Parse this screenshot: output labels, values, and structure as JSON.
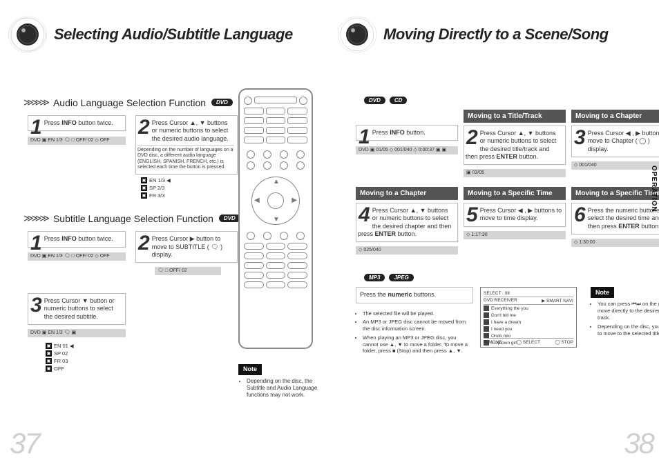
{
  "left_page": {
    "title": "Selecting Audio/Subtitle Language",
    "page_number": "37",
    "audio_section": {
      "heading": "Audio Language Selection Function",
      "tags": [
        "DVD"
      ],
      "step1": {
        "num": "1",
        "text": "Press <b>INFO</b> button twice."
      },
      "step2": {
        "num": "2",
        "text": "Press Cursor ▲, ▼ buttons or numeric buttons to select the desired audio language."
      },
      "step2_footnote": "Depending on the number of languages on a DVD disc, a different audio language (ENGLISH, SPANISH, FRENCH, etc.) is selected each time the button is pressed.",
      "strip1": "DVD ▣ EN 1/3 🗨 □ OFF/ 02 ◇ OFF",
      "badges": [
        {
          "icon": "EN",
          "text": "EN 1/3 ◀"
        },
        {
          "icon": "SP",
          "text": "SP 2/3"
        },
        {
          "icon": "FR",
          "text": "FR 3/3"
        }
      ]
    },
    "subtitle_section": {
      "heading": "Subtitle Language Selection Function",
      "tags": [
        "DVD"
      ],
      "step1": {
        "num": "1",
        "text": "Press <b>INFO</b> button twice."
      },
      "step2": {
        "num": "2",
        "text": "Press Cursor ▶ button to move to SUBTITLE ( 🗨 ) display."
      },
      "step3": {
        "num": "3",
        "text": "Press Cursor ▼ button or numeric buttons to select the desired subtitle."
      },
      "strip1": "DVD ▣ EN 1/3 🗨 □ OFF/ 02 ◇ OFF",
      "strip2": "🗨 □ OFF/ 02",
      "strip3": "DVD ▣ EN 1/3 🗨 ▣",
      "badges": [
        {
          "icon": "EN",
          "text": "EN 01 ◀"
        },
        {
          "icon": "SP",
          "text": "SP 02"
        },
        {
          "icon": "FR",
          "text": "FR 03"
        },
        {
          "icon": "--",
          "text": "OFF"
        }
      ]
    },
    "note": {
      "label": "Note",
      "bullets": [
        "Depending on the disc, the Subtitle and Audio Language functions may not work."
      ]
    }
  },
  "right_page": {
    "title": "Moving Directly to a Scene/Song",
    "page_number": "38",
    "side_tab": "OPERATION",
    "row1_tags": [
      "DVD",
      "CD"
    ],
    "cells": {
      "c1": {
        "header": "",
        "num": "1",
        "text": "Press <b>INFO</b> button.",
        "strip": "DVD ▣ 01/05 ◇ 001/040 ◇ 0:00:37 ▣ ▣"
      },
      "c2": {
        "header": "Moving to a Title/Track",
        "num": "2",
        "text": "Press Cursor ▲, ▼ buttons or numeric buttons to select the desired title/track and then press <b>ENTER</b> button.",
        "strip": "▣ 03/05"
      },
      "c3": {
        "header": "Moving to a Chapter",
        "num": "3",
        "text": "Press Cursor ◀ , ▶ buttons to move to Chapter ( ◯ ) display.",
        "strip": "◇ 001/040"
      },
      "c4": {
        "header": "Moving to a Chapter",
        "num": "4",
        "text": "Press Cursor ▲, ▼ buttons or numeric buttons to select the desired chapter and then press <b>ENTER</b> button.",
        "strip": "◇ 025/040"
      },
      "c5": {
        "header": "Moving to a Specific Time",
        "num": "5",
        "text": "Press Cursor ◀ , ▶ buttons to move to time display.",
        "strip": "◇ 1:17:30"
      },
      "c6": {
        "header": "Moving to a Specific Time",
        "num": "6",
        "text": "Press the numeric buttons to select the desired time and then press <b>ENTER</b> button.",
        "strip": "◇ 1:30:00"
      }
    },
    "row2_tags": [
      "MP3",
      "JPEG"
    ],
    "mp3": {
      "step_text": "Press the <b>numeric</b> buttons.",
      "bullets": [
        "The selected file will be played.",
        "An MP3 or JPEG disc cannot be moved from the disc information screen.",
        "When playing an MP3 or JPEG disc, you cannot use ▲, ▼ to move a folder. To move a folder, press ■ (Stop) and then press ▲, ▼."
      ],
      "browser": {
        "title": "SELECT :  08",
        "device": "DVD RECEIVER",
        "mode": "▶ SMART NAVI",
        "items": [
          "Everything the you",
          "Don't tell me",
          "I have a dream",
          "I need you",
          "Ondo mio",
          "♪ Uptown girl"
        ],
        "footer_l": "⏎ MOVE",
        "footer_m": "◯ SELECT",
        "footer_r": "◯ STOP"
      },
      "note_label": "Note",
      "note_bullets": [
        "You can press ⏮⏭ on the remote control to move directly to the desired title, chapter, or track.",
        "Depending on the disc, you may not be able to move to the selected title or time."
      ]
    }
  },
  "colors": {
    "title": "#222222",
    "dark_bar_bg": "#555555",
    "step_border": "#bbbbbb",
    "strip_bg": "#d4d4d4",
    "note_tag_bg": "#111111",
    "page_num": "#cfcfcf"
  }
}
